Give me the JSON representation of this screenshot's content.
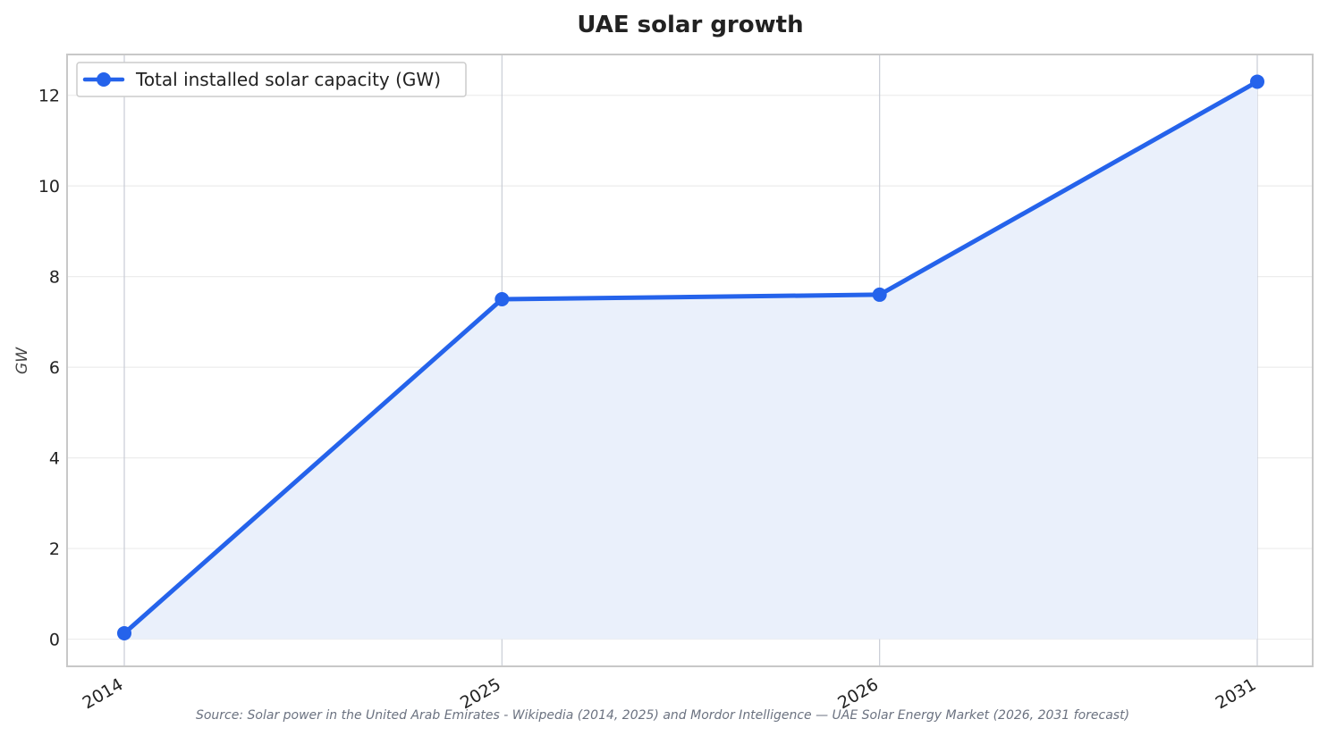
{
  "chart_data": {
    "type": "line",
    "title": "UAE solar growth",
    "xlabel": "",
    "ylabel": "GW",
    "categories": [
      "2014",
      "2025",
      "2026",
      "2031"
    ],
    "series": [
      {
        "name": "Total installed solar capacity (GW)",
        "values": [
          0.13,
          7.5,
          7.6,
          12.3
        ]
      }
    ],
    "ylim": [
      -0.6,
      12.9
    ],
    "yticks": [
      0,
      2,
      4,
      6,
      8,
      10,
      12
    ],
    "area_fill": true,
    "grid": true,
    "legend_position": "top-left",
    "colors": {
      "line": "#2563eb",
      "fill": "#eaf0fb",
      "grid_vertical": "#c8ccd6",
      "grid_horizontal": "#ececec",
      "frame": "#c8c8c8"
    },
    "source": "Source: Solar power in the United Arab Emirates - Wikipedia (2014, 2025) and Mordor Intelligence — UAE Solar Energy Market (2026, 2031 forecast)"
  }
}
